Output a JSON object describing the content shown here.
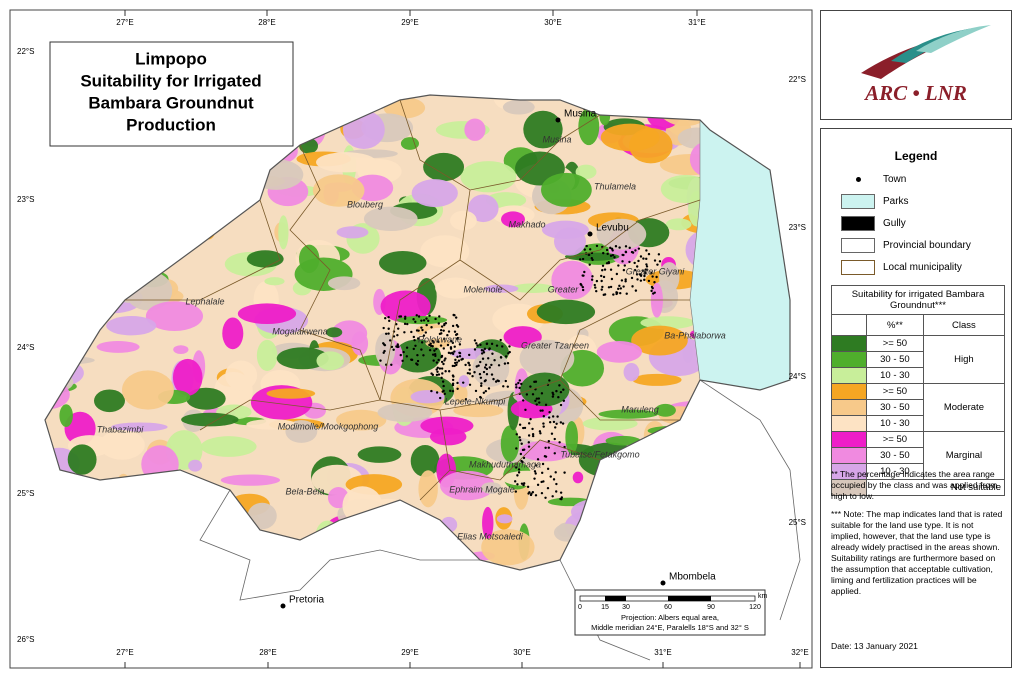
{
  "title": {
    "lines": [
      "Limpopo",
      "Suitability for Irrigated",
      "Bambara Groundnut",
      "Production"
    ]
  },
  "graticule": {
    "top": [
      "27°E",
      "28°E",
      "29°E",
      "30°E",
      "31°E"
    ],
    "bottom": [
      "27°E",
      "28°E",
      "29°E",
      "30°E",
      "31°E",
      "32°E"
    ],
    "left": [
      "22°S",
      "23°S",
      "24°S",
      "25°S",
      "26°S"
    ],
    "right": [
      "22°S",
      "23°S",
      "24°S",
      "25°S"
    ]
  },
  "towns": [
    "Musina",
    "Levubu",
    "Pretoria",
    "Mbombela"
  ],
  "municipalities": [
    "Musina",
    "Blouberg",
    "Thulamela",
    "Makhado",
    "Greater Giyani",
    "Molemole",
    "Greater",
    "Lephalale",
    "Mogalakwena",
    "Polokwane",
    "Greater Tzaneen",
    "Ba-Phalaborwa",
    "Lepele-Nkumpi",
    "Maruleng",
    "Thabazimbi",
    "Modimolle/Mookgophong",
    "Tubatse/Fetakgomo",
    "Makhuduthamaga",
    "Bela-Bela",
    "Ephraim Mogale",
    "Elias Motsoaledi"
  ],
  "scale_bar": {
    "labels": [
      "0",
      "15",
      "30",
      "60",
      "90",
      "120"
    ],
    "unit": "km"
  },
  "projection": [
    "Projection: Albers equal area,",
    "Middle meridian 24°E, Paralells 18°S and 32° S"
  ],
  "logo": "ARC • LNR",
  "legend": {
    "title": "Legend",
    "items": [
      {
        "label": "Town"
      },
      {
        "label": "Parks",
        "color": "#ccf3f0"
      },
      {
        "label": "Gully",
        "color": "#000000"
      },
      {
        "label": "Provincial boundary",
        "color": "#ffffff"
      },
      {
        "label": "Local municipality",
        "color": "#ffffff"
      }
    ]
  },
  "suitability": {
    "title": "Suitability for irrigated Bambara Groundnut***",
    "headers": [
      "%**",
      "Class"
    ],
    "groups": [
      {
        "class": "High",
        "rows": [
          {
            "range": ">= 50",
            "color": "#2e7b22"
          },
          {
            "range": "30 - 50",
            "color": "#4fae2c"
          },
          {
            "range": "10 - 30",
            "color": "#c8ee9a"
          }
        ]
      },
      {
        "class": "Moderate",
        "rows": [
          {
            "range": ">= 50",
            "color": "#f5a623"
          },
          {
            "range": "30 - 50",
            "color": "#f7c98a"
          },
          {
            "range": "10 - 30",
            "color": "#fde3c4"
          }
        ]
      },
      {
        "class": "Marginal",
        "rows": [
          {
            "range": ">= 50",
            "color": "#ee1ec8"
          },
          {
            "range": "30 - 50",
            "color": "#f08ae0"
          },
          {
            "range": "10 - 30",
            "color": "#d7a6e8"
          }
        ]
      },
      {
        "class": "Not suitable",
        "color": "#d8c8bc"
      }
    ]
  },
  "notes": [
    "** The percentage indicates the area range occupied by the class and was applied from high to low.",
    "*** Note: The map indicates land that is rated suitable for the land use type. It is not implied, however, that the land use type is already widely practised in the areas shown. Suitability ratings are furthermore based on the assumption that acceptable cultivation, liming and fertilization practices will be applied."
  ],
  "date": "Date: 13 January 2021"
}
